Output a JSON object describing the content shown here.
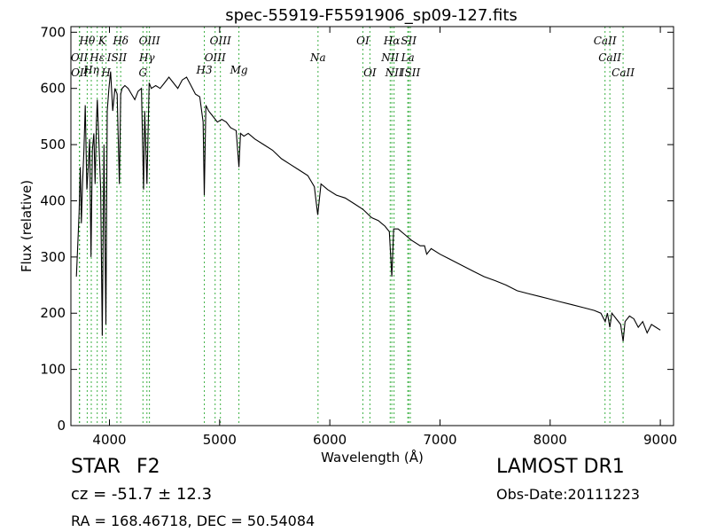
{
  "chart_data": {
    "type": "line",
    "title": "spec-55919-F5591906_sp09-127.fits",
    "xlabel": "Wavelength (Å)",
    "ylabel": "Flux (relative)",
    "xlim": [
      3650,
      9120
    ],
    "ylim": [
      0,
      710
    ],
    "xticks": [
      4000,
      5000,
      6000,
      7000,
      8000,
      9000
    ],
    "yticks": [
      0,
      100,
      200,
      300,
      400,
      500,
      600,
      700
    ],
    "grid": false,
    "line_color": "#000000",
    "marker_color": "#3cb043",
    "spectrum": {
      "x": [
        3700,
        3712,
        3725,
        3735,
        3745,
        3755,
        3768,
        3780,
        3795,
        3808,
        3820,
        3833,
        3845,
        3858,
        3870,
        3882,
        3890,
        3905,
        3920,
        3935,
        3950,
        3968,
        3980,
        3995,
        4010,
        4030,
        4050,
        4070,
        4090,
        4102,
        4115,
        4140,
        4170,
        4200,
        4230,
        4260,
        4290,
        4310,
        4320,
        4340,
        4360,
        4380,
        4420,
        4460,
        4500,
        4540,
        4580,
        4620,
        4660,
        4700,
        4740,
        4780,
        4820,
        4850,
        4861,
        4875,
        4900,
        4940,
        4980,
        5020,
        5060,
        5100,
        5150,
        5175,
        5190,
        5220,
        5260,
        5320,
        5400,
        5480,
        5560,
        5640,
        5720,
        5800,
        5860,
        5890,
        5920,
        5980,
        6060,
        6140,
        6220,
        6300,
        6380,
        6440,
        6500,
        6540,
        6563,
        6580,
        6620,
        6680,
        6740,
        6820,
        6860,
        6880,
        6920,
        7000,
        7100,
        7200,
        7300,
        7400,
        7500,
        7600,
        7700,
        7800,
        7900,
        8000,
        8100,
        8200,
        8300,
        8400,
        8460,
        8500,
        8520,
        8542,
        8560,
        8600,
        8640,
        8662,
        8680,
        8720,
        8760,
        8800,
        8840,
        8880,
        8920,
        8960,
        9000
      ],
      "y": [
        265,
        320,
        380,
        460,
        360,
        430,
        490,
        570,
        420,
        460,
        510,
        300,
        490,
        520,
        430,
        540,
        580,
        500,
        420,
        160,
        500,
        180,
        560,
        600,
        630,
        560,
        600,
        590,
        430,
        590,
        600,
        605,
        600,
        590,
        580,
        595,
        600,
        420,
        560,
        430,
        610,
        600,
        605,
        600,
        610,
        620,
        610,
        600,
        615,
        620,
        605,
        590,
        585,
        540,
        410,
        570,
        560,
        550,
        540,
        545,
        540,
        530,
        525,
        460,
        520,
        515,
        520,
        510,
        500,
        490,
        475,
        465,
        455,
        445,
        425,
        375,
        430,
        420,
        410,
        405,
        395,
        385,
        370,
        365,
        355,
        345,
        265,
        350,
        350,
        340,
        330,
        320,
        320,
        305,
        315,
        305,
        295,
        285,
        275,
        265,
        258,
        250,
        240,
        235,
        230,
        225,
        220,
        215,
        210,
        205,
        200,
        185,
        200,
        175,
        200,
        190,
        180,
        150,
        185,
        195,
        190,
        175,
        185,
        165,
        180,
        175,
        170
      ]
    },
    "lines": [
      {
        "label": "Hθ",
        "x": 3798,
        "row": 0
      },
      {
        "label": "K",
        "x": 3934,
        "row": 0
      },
      {
        "label": "Hδ",
        "x": 4102,
        "row": 0
      },
      {
        "label": "OIII",
        "x": 4363,
        "row": 0
      },
      {
        "label": "OIII",
        "x": 5007,
        "row": 0
      },
      {
        "label": "OI",
        "x": 6300,
        "row": 0
      },
      {
        "label": "Hα",
        "x": 6563,
        "row": 0
      },
      {
        "label": "SII",
        "x": 6716,
        "row": 0
      },
      {
        "label": "CaII",
        "x": 8498,
        "row": 0
      },
      {
        "label": "OII",
        "x": 3727,
        "row": 1
      },
      {
        "label": "Hε",
        "x": 3889,
        "row": 1
      },
      {
        "label": "ISII",
        "x": 4068,
        "row": 1
      },
      {
        "label": "Hγ",
        "x": 4340,
        "row": 1
      },
      {
        "label": "OIII",
        "x": 4959,
        "row": 1
      },
      {
        "label": "Na",
        "x": 5893,
        "row": 1
      },
      {
        "label": "NII",
        "x": 6548,
        "row": 1
      },
      {
        "label": "La",
        "x": 6708,
        "row": 1
      },
      {
        "label": "CaII",
        "x": 8542,
        "row": 1
      },
      {
        "label": "Hη",
        "x": 3835,
        "row": 2
      },
      {
        "label": "H3",
        "x": 4861,
        "row": 2
      },
      {
        "label": "Mg",
        "x": 5175,
        "row": 2
      },
      {
        "label": "OII",
        "x": 3729,
        "row": 3
      },
      {
        "label": "H",
        "x": 3969,
        "row": 3
      },
      {
        "label": "G",
        "x": 4304,
        "row": 3
      },
      {
        "label": "OI",
        "x": 6364,
        "row": 3
      },
      {
        "label": "NII",
        "x": 6583,
        "row": 3
      },
      {
        "label": "ISII",
        "x": 6731,
        "row": 3
      },
      {
        "label": "CaII",
        "x": 8662,
        "row": 3
      }
    ]
  },
  "info": {
    "object_class": "STAR",
    "subclass": "F2",
    "survey": "LAMOST DR1",
    "cz": "cz = -51.7 ± 12.3",
    "obs_date": "Obs-Date:20111223",
    "coords": "RA = 168.46718, DEC = 50.54084"
  }
}
